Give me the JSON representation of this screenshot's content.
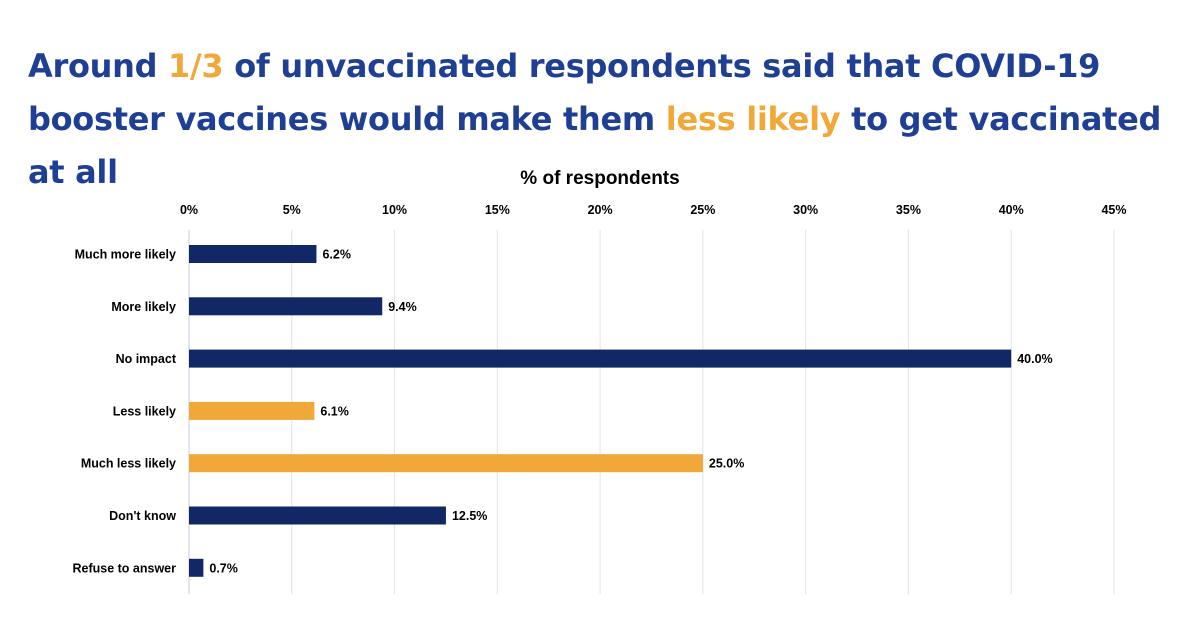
{
  "headline": {
    "part1": "Around ",
    "highlight1": "1/3",
    "part2": " of unvaccinated respondents said that COVID-19 booster vaccines would make them ",
    "highlight2": "less likely",
    "part3": " to get vaccinated at all"
  },
  "colors": {
    "title_blue": "#1f3f94",
    "highlight_orange": "#f0a838",
    "bar_navy": "#112766",
    "bar_orange": "#f0a838",
    "grid": "#dfe3ee"
  },
  "chart_data": {
    "type": "bar",
    "orientation": "horizontal",
    "xlabel": "% of respondents",
    "xaxis_position": "top",
    "xlim": [
      0,
      45
    ],
    "xticks": [
      0,
      5,
      10,
      15,
      20,
      25,
      30,
      35,
      40,
      45
    ],
    "xtick_labels": [
      "0%",
      "5%",
      "10%",
      "15%",
      "20%",
      "25%",
      "30%",
      "35%",
      "40%",
      "45%"
    ],
    "grid": true,
    "categories": [
      "Much more likely",
      "More likely",
      "No impact",
      "Less likely",
      "Much less likely",
      "Don't know",
      "Refuse to answer"
    ],
    "values": [
      6.2,
      9.4,
      40.0,
      6.1,
      25.0,
      12.5,
      0.7
    ],
    "data_labels": [
      "6.2%",
      "9.4%",
      "40.0%",
      "6.1%",
      "25.0%",
      "12.5%",
      "0.7%"
    ],
    "bar_colors": [
      "#112766",
      "#112766",
      "#112766",
      "#f0a838",
      "#f0a838",
      "#112766",
      "#112766"
    ]
  }
}
